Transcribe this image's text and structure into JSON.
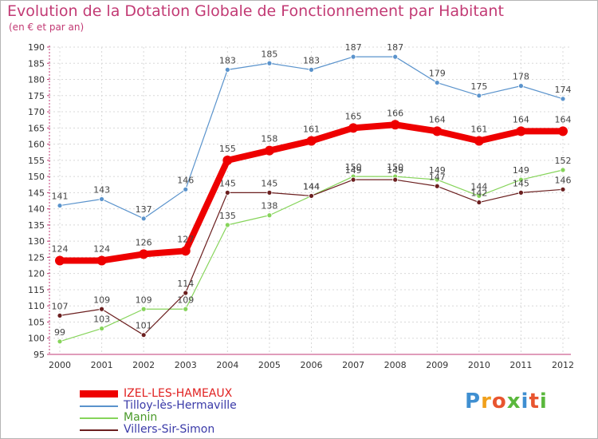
{
  "title": "Evolution de la Dotation Globale de Fonctionnement par Habitant",
  "subtitle": "(en € et par an)",
  "brand": {
    "letters": [
      "P",
      "r",
      "o",
      "x",
      "i",
      "t",
      "i"
    ],
    "colors": [
      "#3f8fd1",
      "#f0a01c",
      "#e8552f",
      "#5ab83c",
      "#3f8fd1",
      "#e8552f",
      "#5ab83c"
    ]
  },
  "chart_data": {
    "type": "line",
    "title": "Evolution de la Dotation Globale de Fonctionnement par Habitant",
    "subtitle": "(en € et par an)",
    "xlabel": "",
    "ylabel": "",
    "x": [
      "2000",
      "2001",
      "2002",
      "2003",
      "2004",
      "2005",
      "2006",
      "2007",
      "2008",
      "2009",
      "2010",
      "2011",
      "2012"
    ],
    "ylim": [
      95,
      190
    ],
    "yticks": [
      95,
      100,
      105,
      110,
      115,
      120,
      125,
      130,
      135,
      140,
      145,
      150,
      155,
      160,
      165,
      170,
      175,
      180,
      185,
      190
    ],
    "grid": true,
    "legend_position": "bottom-left",
    "series": [
      {
        "name": "Tilloy-lès-Hermaville",
        "color": "#5a93cc",
        "values": [
          141,
          143,
          137,
          146,
          183,
          185,
          183,
          187,
          187,
          179,
          175,
          178,
          174
        ],
        "emphasis": false
      },
      {
        "name": "Manin",
        "color": "#86d45a",
        "values": [
          99,
          103,
          109,
          109,
          135,
          138,
          144,
          150,
          150,
          149,
          144,
          149,
          152
        ],
        "emphasis": false
      },
      {
        "name": "Villers-Sir-Simon",
        "color": "#6b1f1f",
        "values": [
          107,
          109,
          101,
          114,
          145,
          145,
          144,
          149,
          149,
          147,
          142,
          145,
          146
        ],
        "emphasis": false
      },
      {
        "name": "IZEL-LES-HAMEAUX",
        "color": "#ee0000",
        "values": [
          124,
          124,
          126,
          127,
          155,
          158,
          161,
          165,
          166,
          164,
          161,
          164,
          164
        ],
        "emphasis": true
      }
    ],
    "legend_order": [
      "IZEL-LES-HAMEAUX",
      "Tilloy-lès-Hermaville",
      "Manin",
      "Villers-Sir-Simon"
    ]
  }
}
